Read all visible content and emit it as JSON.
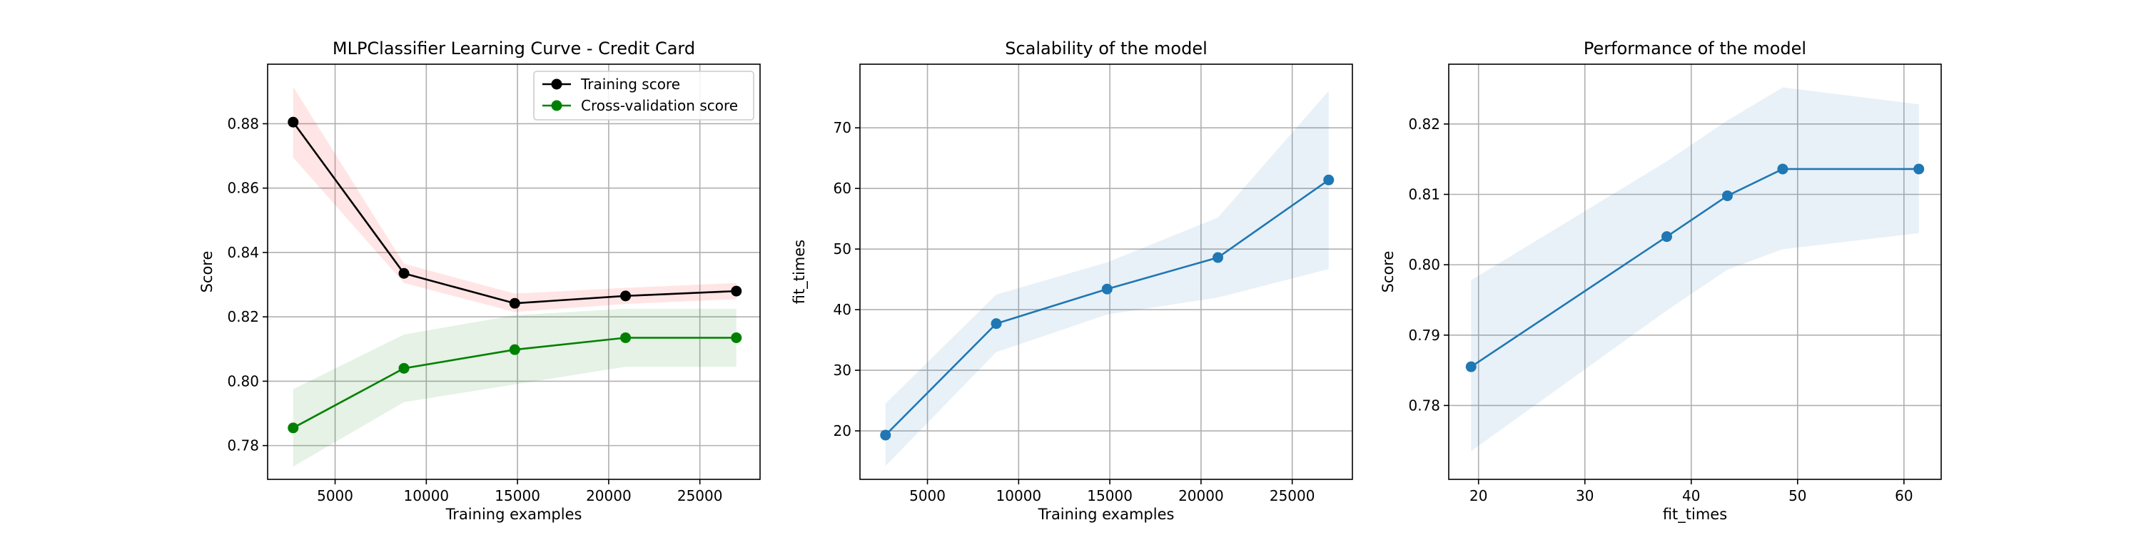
{
  "figure": {
    "background": "#ffffff"
  },
  "chart_data": [
    {
      "type": "line",
      "title": "MLPClassifier Learning Curve - Credit Card",
      "xlabel": "Training examples",
      "ylabel": "Score",
      "xlim": [
        1300,
        28300
      ],
      "ylim": [
        0.7695,
        0.8985
      ],
      "xticks": [
        5000,
        10000,
        15000,
        20000,
        25000
      ],
      "yticks": [
        0.78,
        0.8,
        0.82,
        0.84,
        0.86,
        0.88
      ],
      "ytick_decimals": 2,
      "grid": true,
      "legend_position": "top-right",
      "x": [
        2700,
        8775,
        14850,
        20925,
        27000
      ],
      "series": [
        {
          "name": "Training score",
          "color": "#000000",
          "band_color": "#ff0000",
          "values": [
            0.8805,
            0.8335,
            0.8242,
            0.8265,
            0.828
          ],
          "lower": [
            0.8695,
            0.8305,
            0.8215,
            0.824,
            0.8255
          ],
          "upper": [
            0.8915,
            0.8365,
            0.8272,
            0.829,
            0.8305
          ]
        },
        {
          "name": "Cross-validation score",
          "color": "#008000",
          "band_color": "#008000",
          "values": [
            0.7855,
            0.804,
            0.8098,
            0.8135,
            0.8135
          ],
          "lower": [
            0.7735,
            0.7935,
            0.799,
            0.8045,
            0.8045
          ],
          "upper": [
            0.7975,
            0.8145,
            0.8205,
            0.8225,
            0.8225
          ]
        }
      ]
    },
    {
      "type": "line",
      "title": "Scalability of the model",
      "xlabel": "Training examples",
      "ylabel": "fit_times",
      "xlim": [
        1300,
        28300
      ],
      "ylim": [
        12.0,
        80.5
      ],
      "xticks": [
        5000,
        10000,
        15000,
        20000,
        25000
      ],
      "yticks": [
        20,
        30,
        40,
        50,
        60,
        70
      ],
      "ytick_decimals": 0,
      "grid": true,
      "x": [
        2700,
        8775,
        14850,
        20925,
        27000
      ],
      "series": [
        {
          "color": "#1f77b4",
          "band_color": "#1f77b4",
          "values": [
            19.3,
            37.7,
            43.4,
            48.6,
            61.4
          ],
          "lower": [
            14.2,
            33.0,
            39.2,
            42.0,
            46.7
          ],
          "upper": [
            24.5,
            42.5,
            47.8,
            55.2,
            76.1
          ]
        }
      ]
    },
    {
      "type": "line",
      "title": "Performance of the model",
      "xlabel": "fit_times",
      "ylabel": "Score",
      "xlim": [
        17.2,
        63.5
      ],
      "ylim": [
        0.7695,
        0.8285
      ],
      "xticks": [
        20,
        30,
        40,
        50,
        60
      ],
      "yticks": [
        0.78,
        0.79,
        0.8,
        0.81,
        0.82
      ],
      "ytick_decimals": 2,
      "grid": true,
      "x": [
        19.3,
        37.7,
        43.4,
        48.6,
        61.4
      ],
      "series": [
        {
          "color": "#1f77b4",
          "band_color": "#1f77b4",
          "values": [
            0.7855,
            0.804,
            0.8098,
            0.8136,
            0.8136
          ],
          "lower": [
            0.7735,
            0.7935,
            0.7993,
            0.8022,
            0.8045
          ],
          "upper": [
            0.7978,
            0.8147,
            0.8205,
            0.8252,
            0.8228
          ]
        }
      ]
    }
  ]
}
